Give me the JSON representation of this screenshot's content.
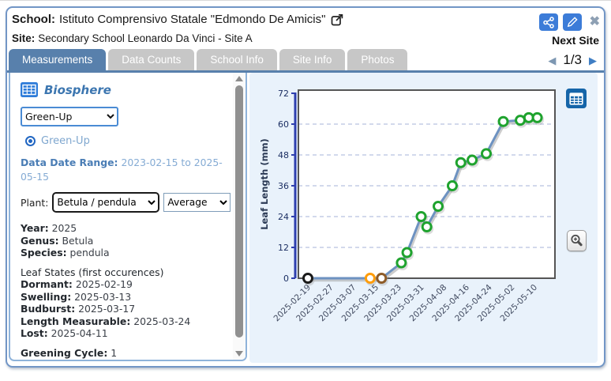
{
  "header": {
    "school_label": "School:",
    "school_name": "Istituto Comprensivo Statale \"Edmondo De Amicis\"",
    "site_label": "Site:",
    "site_name": "Secondary School Leonardo Da Vinci - Site A",
    "next_site_label": "Next Site",
    "pagination": "1/3",
    "icons": {
      "open_school": "open-in-new-arrow-box",
      "share": "share-nodes",
      "edit": "pencil",
      "close": "✖",
      "prev": "◀",
      "next": "▶"
    }
  },
  "tabs": [
    {
      "label": "Measurements",
      "active": true
    },
    {
      "label": "Data Counts",
      "active": false
    },
    {
      "label": "School Info",
      "active": false
    },
    {
      "label": "Site Info",
      "active": false
    },
    {
      "label": "Photos",
      "active": false
    }
  ],
  "sidebar": {
    "section_title": "Biosphere",
    "protocol_selected": "Green-Up",
    "radio_label": "Green-Up",
    "date_range_label": "Data Date Range:",
    "date_range_value": "2023-02-15 to 2025-05-15",
    "plant_label": "Plant:",
    "plant_selected": "Betula / pendula",
    "aggregation_selected": "Average",
    "details": [
      {
        "label": "Year:",
        "value": "2025"
      },
      {
        "label": "Genus:",
        "value": "Betula"
      },
      {
        "label": "Species:",
        "value": "pendula"
      }
    ],
    "leaf_states_heading": "Leaf States (first occurences)",
    "leaf_states": [
      {
        "label": "Dormant:",
        "value": "2025-02-19"
      },
      {
        "label": "Swelling:",
        "value": "2025-03-13"
      },
      {
        "label": "Budburst:",
        "value": "2025-03-17"
      },
      {
        "label": "Length Measurable:",
        "value": "2025-03-24"
      },
      {
        "label": "Lost:",
        "value": "2025-04-11"
      }
    ],
    "greening_label": "Greening Cycle:",
    "greening_value": "1"
  },
  "chart_data": {
    "type": "line",
    "title": "",
    "xlabel": "",
    "ylabel": "Leaf Length (mm)",
    "ylim": [
      0,
      72
    ],
    "yticks": [
      0,
      12,
      24,
      36,
      48,
      60,
      72
    ],
    "grid": "horizontal dashed gridlines at 12, 24, 36, 48, 60",
    "legend_position": "none",
    "xticks": [
      "2025-02-19",
      "2025-02-27",
      "2025-03-07",
      "2025-03-15",
      "2025-03-23",
      "2025-03-31",
      "2025-04-08",
      "2025-04-16",
      "2025-04-24",
      "2025-05-02",
      "2025-05-10"
    ],
    "line_color": "#6d92c1",
    "state_colors": {
      "dormant": "#1a1a1a",
      "swelling": "#ff9d0a",
      "budburst": "#8d5b28",
      "green": "#1fa32e"
    },
    "points": [
      {
        "date": "2025-02-19",
        "value": 0,
        "state": "dormant"
      },
      {
        "date": "2025-03-13",
        "value": 0,
        "state": "swelling"
      },
      {
        "date": "2025-03-17",
        "value": 0,
        "state": "budburst"
      },
      {
        "date": "2025-03-24",
        "value": 6,
        "state": "green"
      },
      {
        "date": "2025-03-26",
        "value": 10,
        "state": "green"
      },
      {
        "date": "2025-03-31",
        "value": 24,
        "state": "green"
      },
      {
        "date": "2025-04-02",
        "value": 20,
        "state": "green"
      },
      {
        "date": "2025-04-06",
        "value": 28,
        "state": "green"
      },
      {
        "date": "2025-04-11",
        "value": 36,
        "state": "green"
      },
      {
        "date": "2025-04-14",
        "value": 45,
        "state": "green"
      },
      {
        "date": "2025-04-18",
        "value": 46,
        "state": "green"
      },
      {
        "date": "2025-04-23",
        "value": 48.5,
        "state": "green"
      },
      {
        "date": "2025-04-29",
        "value": 61,
        "state": "green"
      },
      {
        "date": "2025-05-05",
        "value": 61.5,
        "state": "green"
      },
      {
        "date": "2025-05-08",
        "value": 62.5,
        "state": "green"
      },
      {
        "date": "2025-05-11",
        "value": 62.5,
        "state": "green"
      }
    ]
  },
  "colors": {
    "popup_border": "#7296c6",
    "tab_active": "#5880ac",
    "tab_inactive": "#c7c7c7",
    "chart_panel_bg": "#e9f2fb",
    "icon_button_blue": "#3c7cd8",
    "table_icon_blue": "#1565a9",
    "accent_text_blue": "#3c76b0",
    "axis_blue": "#2e3fae"
  }
}
